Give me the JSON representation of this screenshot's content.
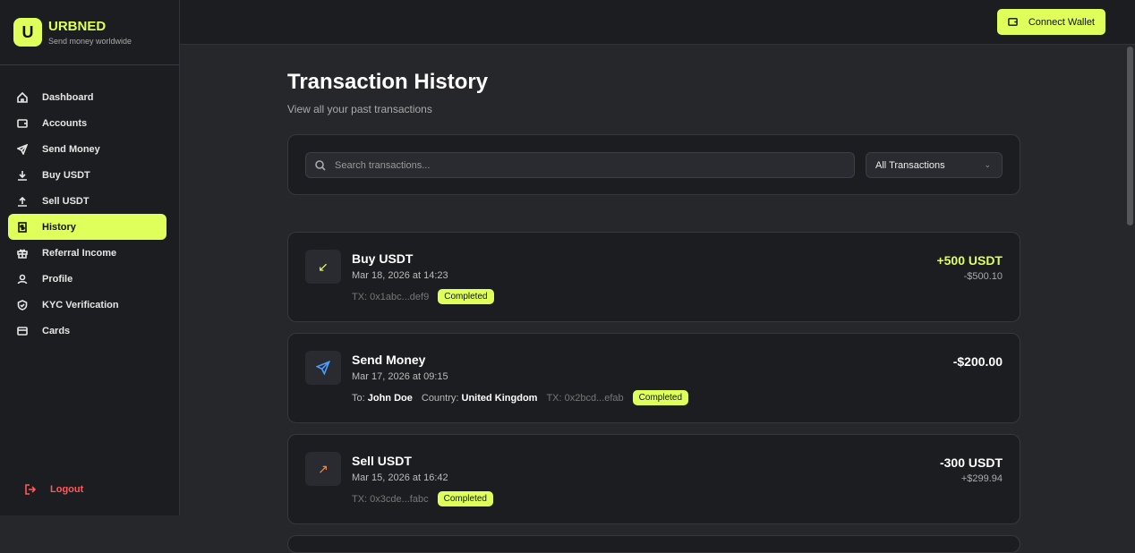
{
  "brand": {
    "logo": "U",
    "name": "URBNED",
    "tagline": "Send money worldwide"
  },
  "nav": [
    {
      "label": "Dashboard",
      "icon": "home-icon"
    },
    {
      "label": "Accounts",
      "icon": "wallet-icon"
    },
    {
      "label": "Send Money",
      "icon": "send-icon"
    },
    {
      "label": "Buy USDT",
      "icon": "download-icon"
    },
    {
      "label": "Sell USDT",
      "icon": "upload-icon"
    },
    {
      "label": "History",
      "icon": "receipt-dollar-icon",
      "active": true
    },
    {
      "label": "Referral Income",
      "icon": "gift-icon"
    },
    {
      "label": "Profile",
      "icon": "user-icon"
    },
    {
      "label": "KYC Verification",
      "icon": "shield-check-icon"
    },
    {
      "label": "Cards",
      "icon": "credit-card-icon"
    }
  ],
  "logout": "Logout",
  "header": {
    "connect_wallet": "Connect Wallet"
  },
  "page": {
    "title": "Transaction History",
    "subtitle": "View all your past transactions"
  },
  "filter": {
    "search_placeholder": "Search transactions...",
    "type_selected": "All Transactions"
  },
  "colors": {
    "accent": "#dfff5a",
    "buy": "#dfff5a",
    "send": "#4a9eff",
    "sell": "#ff8a3d",
    "logout": "#ff5a5a"
  },
  "transactions": [
    {
      "title": "Buy USDT",
      "date": "Mar 18, 2026 at 14:23",
      "tx": "TX: 0x1abc...def9",
      "status": "Completed",
      "amount": "+500 USDT",
      "secondary": "-$500.10",
      "icon": "arrow-down-left-icon"
    },
    {
      "title": "Send Money",
      "date": "Mar 17, 2026 at 09:15",
      "to_label": "To:",
      "to": "John Doe",
      "country_label": "Country:",
      "country": "United Kingdom",
      "tx": "TX: 0x2bcd...efab",
      "status": "Completed",
      "amount": "-$200.00",
      "icon": "send-icon"
    },
    {
      "title": "Sell USDT",
      "date": "Mar 15, 2026 at 16:42",
      "tx": "TX: 0x3cde...fabc",
      "status": "Completed",
      "amount": "-300 USDT",
      "secondary": "+$299.94",
      "icon": "arrow-up-right-icon"
    }
  ]
}
